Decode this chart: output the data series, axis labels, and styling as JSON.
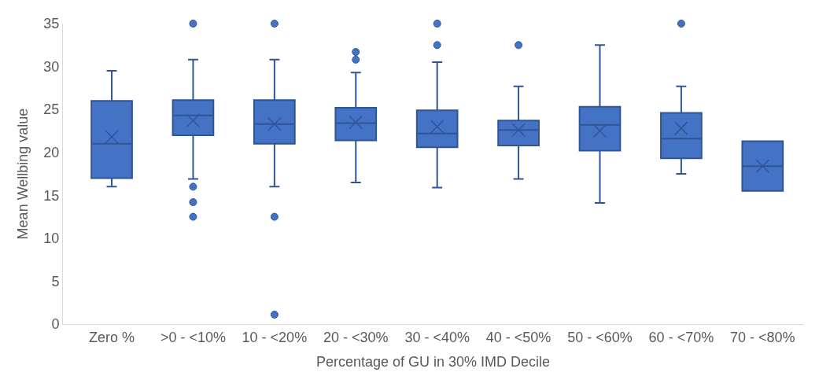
{
  "chart_data": {
    "type": "box",
    "xlabel": "Percentage of GU in 30% IMD Decile",
    "ylabel": "Mean Wellbing value",
    "categories": [
      "Zero %",
      ">0 - <10%",
      "10 - <20%",
      "20 - <30%",
      "30 - <40%",
      "40 - <50%",
      "50 - <60%",
      "60 - <70%",
      "70 - <80%"
    ],
    "color": "#4472c4",
    "boxes": [
      {
        "low": 16,
        "q1": 17,
        "median": 21,
        "q3": 26,
        "high": 29.5,
        "mean": 21.8
      },
      {
        "low": 16.9,
        "q1": 22,
        "median": 24.3,
        "q3": 26.1,
        "high": 30.8,
        "mean": 23.7,
        "outliers": [
          35,
          16,
          14.2,
          12.5
        ]
      },
      {
        "low": 16,
        "q1": 21,
        "median": 23.3,
        "q3": 26.1,
        "high": 30.8,
        "mean": 23.3,
        "outliers": [
          35,
          12.5,
          1.1
        ]
      },
      {
        "low": 16.5,
        "q1": 21.4,
        "median": 23.4,
        "q3": 25.2,
        "high": 29.3,
        "mean": 23.5,
        "outliers": [
          31.7,
          30.8
        ]
      },
      {
        "low": 15.9,
        "q1": 20.6,
        "median": 22.2,
        "q3": 24.9,
        "high": 30.5,
        "mean": 23,
        "outliers": [
          35,
          32.5
        ]
      },
      {
        "low": 16.9,
        "q1": 20.8,
        "median": 22.6,
        "q3": 23.7,
        "high": 27.7,
        "mean": 22.6,
        "outliers": [
          32.5
        ]
      },
      {
        "low": 14.1,
        "q1": 20.2,
        "median": 23.2,
        "q3": 25.3,
        "high": 32.5,
        "mean": 22.5
      },
      {
        "low": 17.5,
        "q1": 19.3,
        "median": 21.6,
        "q3": 24.6,
        "high": 27.7,
        "mean": 22.8,
        "outliers": [
          35
        ]
      },
      {
        "low": 15.5,
        "q1": 15.5,
        "median": 18.4,
        "q3": 21.3,
        "high": 21.3,
        "mean": 18.4
      }
    ],
    "ylim": [
      0,
      35
    ],
    "yticks": [
      0,
      5,
      10,
      15,
      20,
      25,
      30,
      35
    ]
  }
}
